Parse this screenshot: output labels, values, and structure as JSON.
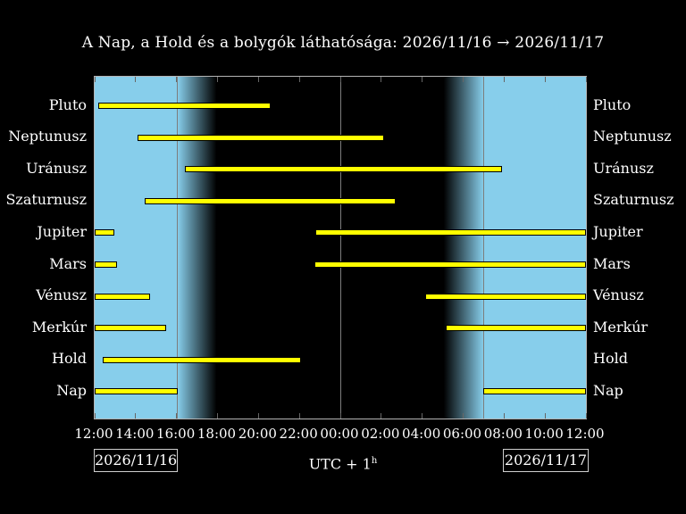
{
  "chart_data": {
    "type": "timeline",
    "title": "A Nap, a Hold és a bolygók láthatósága: 2026/11/16 → 2026/11/17",
    "x_axis": {
      "tick_labels": [
        "12:00",
        "14:00",
        "16:00",
        "18:00",
        "20:00",
        "22:00",
        "00:00",
        "02:00",
        "04:00",
        "06:00",
        "08:00",
        "10:00",
        "12:00"
      ],
      "hours_span": 24,
      "tick_step_hours": 2
    },
    "legend_position": "none",
    "grid": "sun-event lines only",
    "colors": {
      "day": "#87ceeb",
      "night": "#000000",
      "bar_fill": "#ffff00",
      "bar_border": "#000000",
      "text": "#ffffff",
      "frame": "#b4b4b4",
      "event_line": "#7d7d7d",
      "tick": "#666666"
    },
    "sun_events": {
      "sunset": "16:03",
      "sunset_h": 4.05,
      "dusk_end_h": 5.95,
      "midnight": "00:00",
      "midnight_h": 12.0,
      "dawn_start_h": 17.05,
      "sunrise": "07:00",
      "sunrise_h": 19.0
    },
    "rows": [
      {
        "name": "Pluto",
        "intervals": [
          {
            "from": "12:10",
            "to": "20:36",
            "from_h": 0.17,
            "to_h": 8.6
          }
        ]
      },
      {
        "name": "Neptunusz",
        "intervals": [
          {
            "from": "14:06",
            "to": "02:09",
            "from_h": 2.1,
            "to_h": 14.15
          }
        ]
      },
      {
        "name": "Uránusz",
        "intervals": [
          {
            "from": "16:25",
            "to": "07:54",
            "from_h": 4.42,
            "to_h": 19.9
          }
        ]
      },
      {
        "name": "Szaturnusz",
        "intervals": [
          {
            "from": "14:27",
            "to": "02:43",
            "from_h": 2.45,
            "to_h": 14.72
          }
        ]
      },
      {
        "name": "Jupiter",
        "intervals": [
          {
            "from": "12:00",
            "to": "12:58",
            "from_h": 0,
            "to_h": 0.97
          },
          {
            "from": "22:47",
            "to": "12:00",
            "from_h": 10.78,
            "to_h": 24
          }
        ]
      },
      {
        "name": "Mars",
        "intervals": [
          {
            "from": "12:00",
            "to": "13:06",
            "from_h": 0,
            "to_h": 1.1
          },
          {
            "from": "22:44",
            "to": "12:00",
            "from_h": 10.73,
            "to_h": 24
          }
        ]
      },
      {
        "name": "Vénusz",
        "intervals": [
          {
            "from": "12:00",
            "to": "14:43",
            "from_h": 0,
            "to_h": 2.72
          },
          {
            "from": "04:09",
            "to": "12:00",
            "from_h": 16.15,
            "to_h": 24
          }
        ]
      },
      {
        "name": "Merkúr",
        "intervals": [
          {
            "from": "12:00",
            "to": "15:30",
            "from_h": 0,
            "to_h": 3.5
          },
          {
            "from": "05:09",
            "to": "12:00",
            "from_h": 17.15,
            "to_h": 24
          }
        ]
      },
      {
        "name": "Hold",
        "intervals": [
          {
            "from": "12:24",
            "to": "22:05",
            "from_h": 0.4,
            "to_h": 10.08
          }
        ]
      },
      {
        "name": "Nap",
        "intervals": [
          {
            "from": "12:00",
            "to": "16:03",
            "from_h": 0,
            "to_h": 4.05
          },
          {
            "from": "07:00",
            "to": "12:00",
            "from_h": 19.0,
            "to_h": 24
          }
        ]
      }
    ]
  },
  "footer": {
    "date_left": "2026/11/16",
    "date_right": "2026/11/17",
    "utc_prefix": "UTC + 1",
    "utc_sup": "h"
  }
}
